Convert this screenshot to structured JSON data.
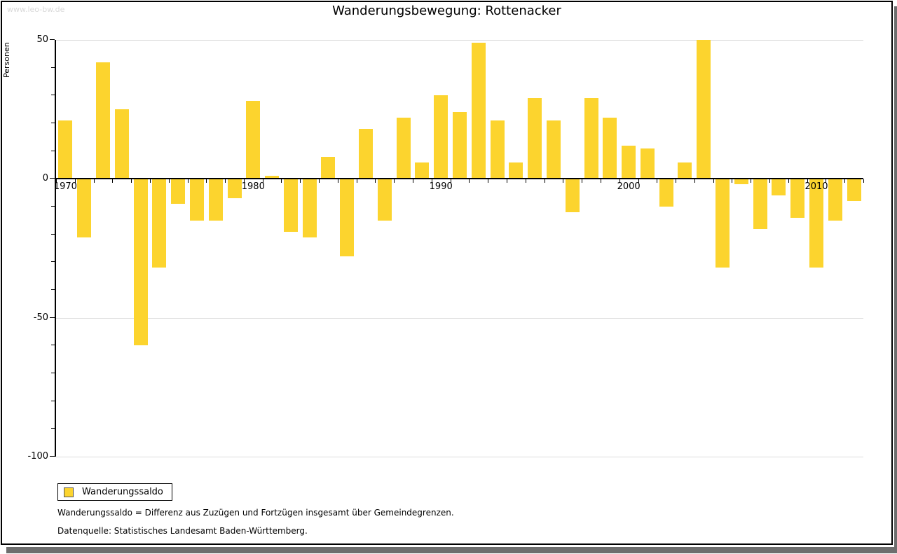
{
  "branding": {
    "watermark": "www.leo-bw.de"
  },
  "chart_data": {
    "type": "bar",
    "title": "Wanderungsbewegung: Rottenacker",
    "ylabel": "Personen",
    "xlabel": "",
    "categories": [
      1970,
      1971,
      1972,
      1973,
      1974,
      1975,
      1976,
      1977,
      1978,
      1979,
      1980,
      1981,
      1982,
      1983,
      1984,
      1985,
      1986,
      1987,
      1988,
      1989,
      1990,
      1991,
      1992,
      1993,
      1994,
      1995,
      1996,
      1997,
      1998,
      1999,
      2000,
      2001,
      2002,
      2003,
      2004,
      2005,
      2006,
      2007,
      2008,
      2009,
      2010,
      2011,
      2012
    ],
    "series": [
      {
        "name": "Wanderungssaldo",
        "color": "#fcd42e",
        "values": [
          21,
          -21,
          42,
          25,
          -60,
          -32,
          -9,
          -15,
          -15,
          -7,
          28,
          1,
          -19,
          -21,
          8,
          -28,
          18,
          -15,
          22,
          6,
          30,
          24,
          49,
          21,
          6,
          29,
          21,
          -12,
          29,
          22,
          12,
          11,
          -10,
          6,
          50,
          -32,
          -2,
          -18,
          -6,
          -14,
          -32,
          -15,
          -8
        ]
      }
    ],
    "ylim": [
      -100,
      50
    ],
    "yticks_labeled": [
      50,
      0,
      -50,
      -100
    ],
    "ytick_minor_step": 10,
    "xticks_labeled": [
      1970,
      1980,
      1990,
      2000,
      2010
    ],
    "gridlines_at": [
      50,
      -50,
      -100
    ],
    "grid": true,
    "legend_position": "bottom-left"
  },
  "legend": {
    "label": "Wanderungssaldo",
    "swatch_color": "#fcd42e"
  },
  "footer": {
    "definition": "Wanderungssaldo = Differenz aus Zuzügen und Fortzügen insgesamt über Gemeindegrenzen.",
    "source": "Datenquelle: Statistisches Landesamt Baden-Württemberg."
  },
  "colors": {
    "bar": "#fcd42e",
    "grid": "#dcdcdc",
    "axis": "#000000",
    "watermark": "#d9d9d9",
    "shadow": "#6e6e6e"
  }
}
